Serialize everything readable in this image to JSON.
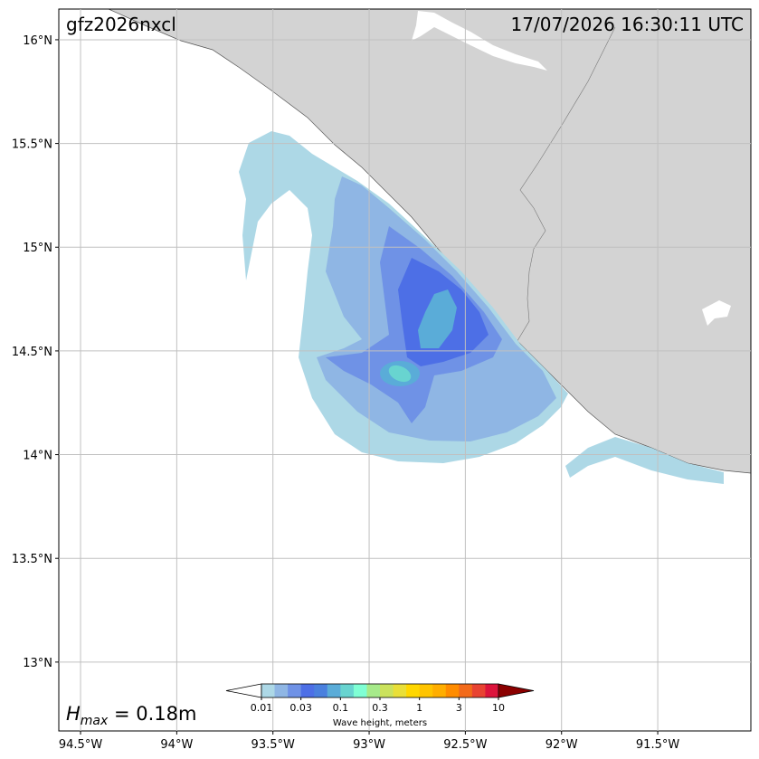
{
  "map": {
    "title": "gfz2026nxcl",
    "timestamp": "17/07/2026 16:30:11 UTC",
    "xlim": [
      -94.613,
      -91.016
    ],
    "ylim": [
      12.668,
      16.148
    ],
    "xticks": [
      {
        "value": -94.5,
        "label": "94.5°W"
      },
      {
        "value": -94,
        "label": "94°W"
      },
      {
        "value": -93.5,
        "label": "93.5°W"
      },
      {
        "value": -93,
        "label": "93°W"
      },
      {
        "value": -92.5,
        "label": "92.5°W"
      },
      {
        "value": -92,
        "label": "92°W"
      },
      {
        "value": -91.5,
        "label": "91.5°W"
      }
    ],
    "yticks": [
      {
        "value": 13,
        "label": "13°N"
      },
      {
        "value": 13.5,
        "label": "13.5°N"
      },
      {
        "value": 14,
        "label": "14°N"
      },
      {
        "value": 14.5,
        "label": "14.5°N"
      },
      {
        "value": 15,
        "label": "15°N"
      },
      {
        "value": 15.5,
        "label": "15.5°N"
      },
      {
        "value": 16,
        "label": "16°N"
      }
    ],
    "grid": true,
    "hmax_symbol": "H",
    "hmax_subscript": "max",
    "hmax_text": " = 0.18m",
    "colorbar": {
      "label": "Wave height, meters",
      "tick_labels": [
        "0.01",
        "0.03",
        "0.1",
        "0.3",
        "1",
        "3",
        "10"
      ],
      "colors": [
        "#add8e6",
        "#8fb6e4",
        "#6f92e6",
        "#4d6fe6",
        "#4a80de",
        "#5aacd8",
        "#68d4d0",
        "#7fffd4",
        "#a6ea8a",
        "#cbe25c",
        "#e9df38",
        "#ffd700",
        "#ffc400",
        "#ffae00",
        "#ff8c00",
        "#f26a1a",
        "#e84332",
        "#dc143c"
      ],
      "under_color": "#ffffff",
      "over_color": "#8b0000"
    }
  }
}
